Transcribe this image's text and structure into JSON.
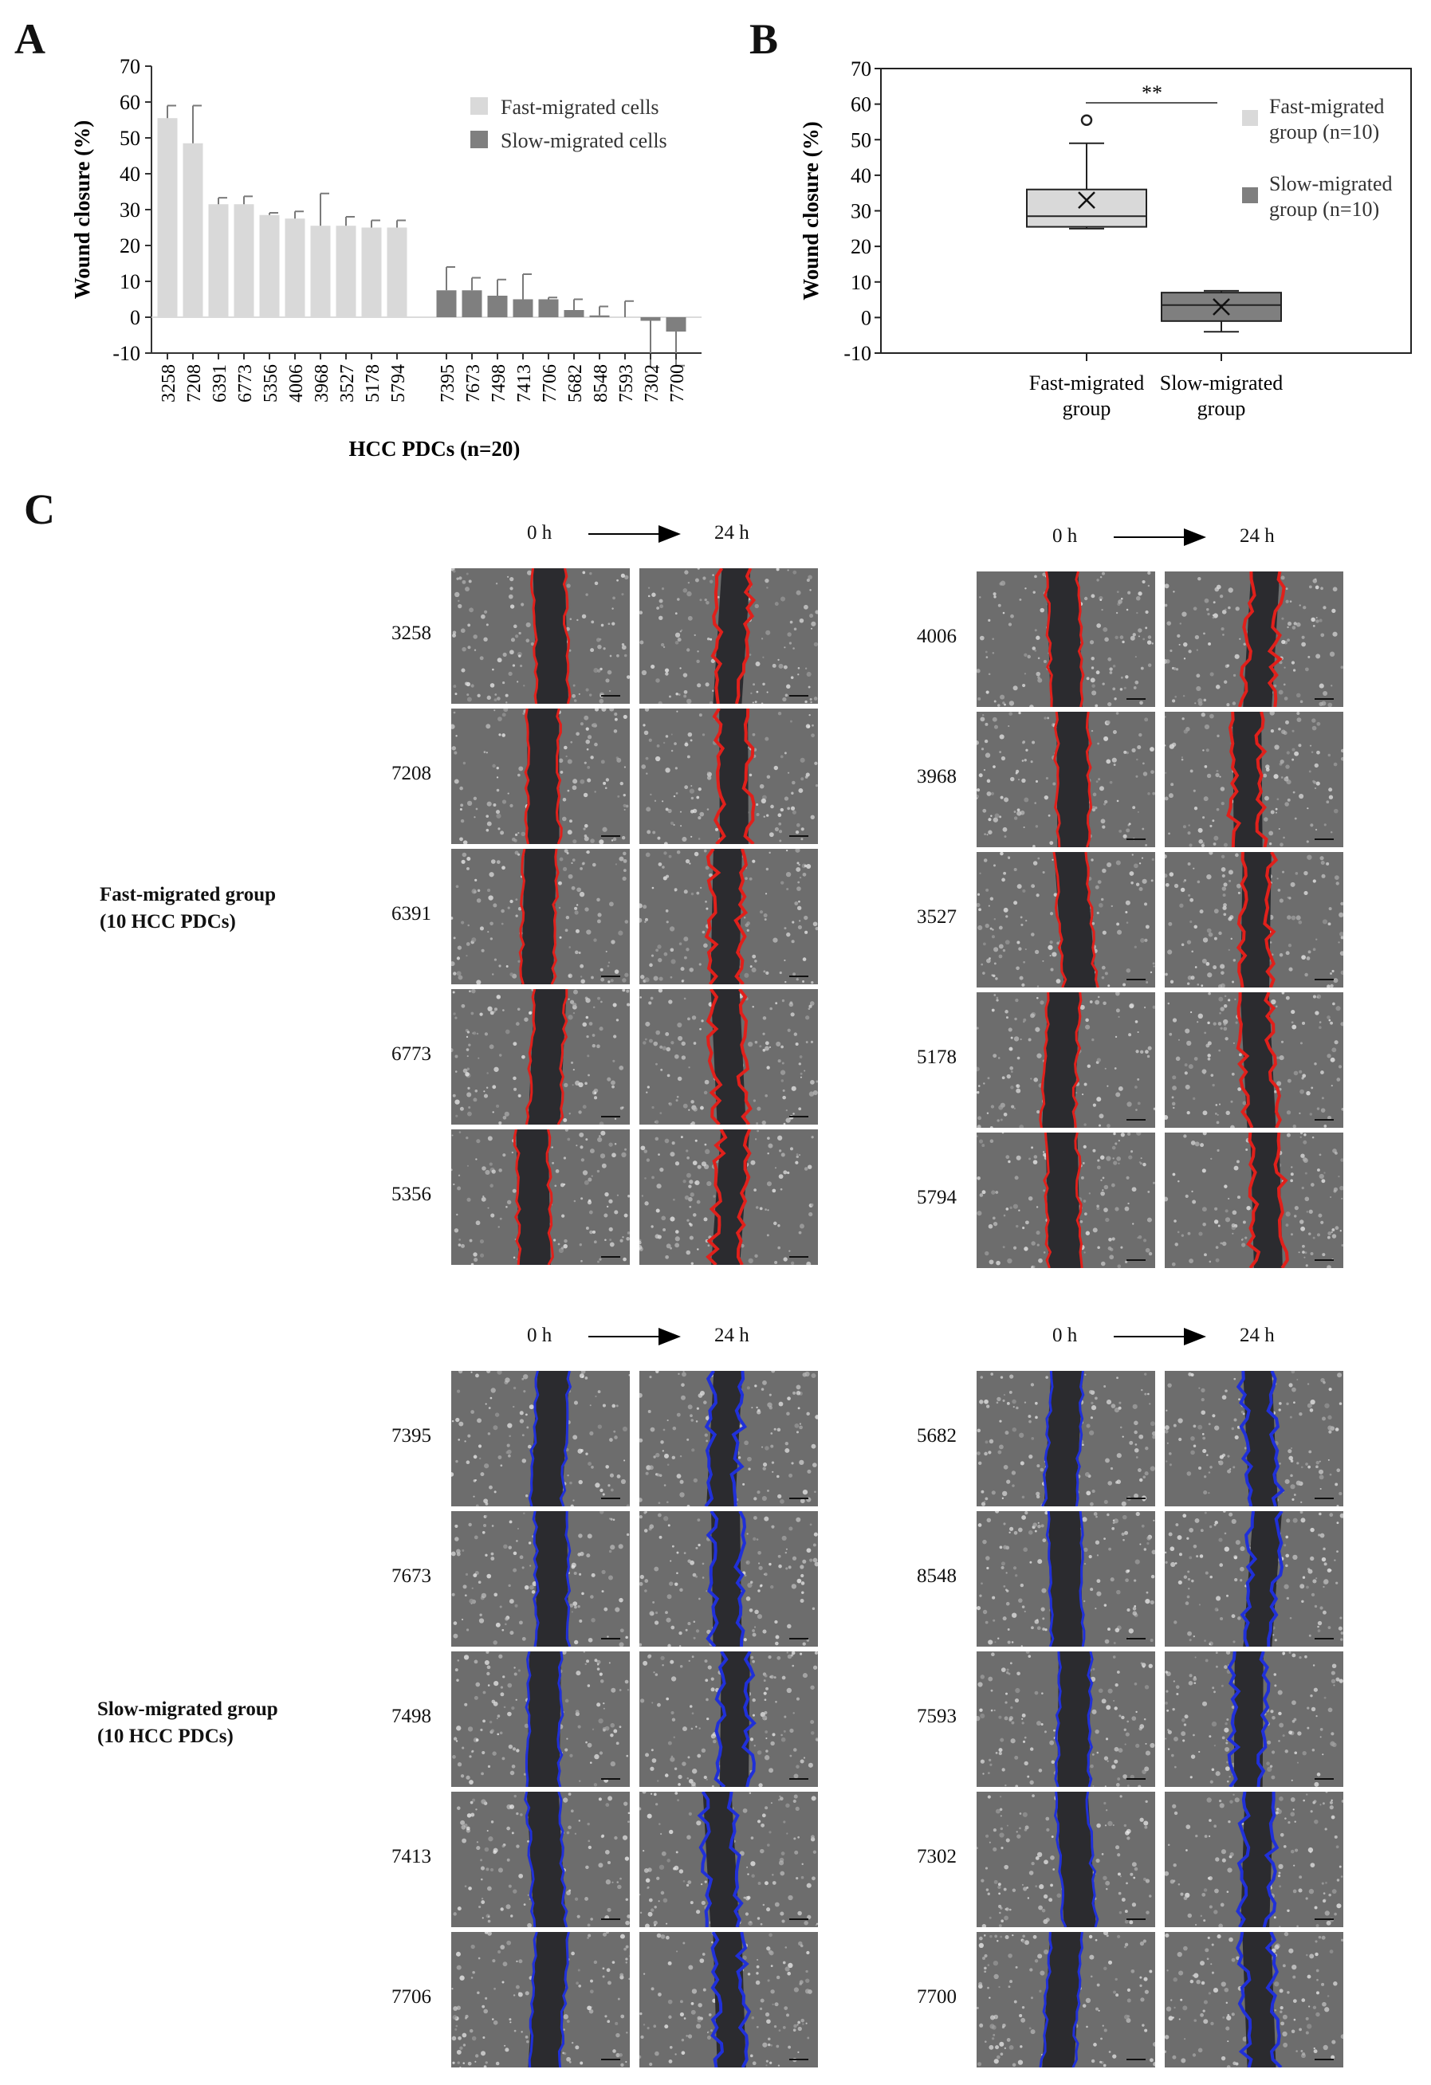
{
  "panels": {
    "a": "A",
    "b": "B",
    "c": "C"
  },
  "chart_data": [
    {
      "type": "bar",
      "panel": "A",
      "xlabel": "HCC PDCs  (n=20)",
      "ylabel": "Wound closure (%)",
      "ylim": [
        -10,
        70
      ],
      "yticks": [
        -10,
        0,
        10,
        20,
        30,
        40,
        50,
        60,
        70
      ],
      "legend_position": "top-right",
      "series": [
        {
          "name": "Fast-migrated cells",
          "color": "#d9d9d9",
          "categories": [
            "3258",
            "7208",
            "6391",
            "6773",
            "5356",
            "4006",
            "3968",
            "3527",
            "5178",
            "5794"
          ],
          "values": [
            55.5,
            48.5,
            31.5,
            31.5,
            28.5,
            27.5,
            25.5,
            25.5,
            25,
            25
          ],
          "errors": [
            3.5,
            10.5,
            1.8,
            2.2,
            0.6,
            2.0,
            9.0,
            2.5,
            2.0,
            2.0
          ]
        },
        {
          "name": "Slow-migrated cells",
          "color": "#7f7f7f",
          "categories": [
            "7395",
            "7673",
            "7498",
            "7413",
            "7706",
            "5682",
            "8548",
            "7593",
            "7302",
            "7700"
          ],
          "values": [
            7.5,
            7.5,
            6,
            5,
            5,
            2,
            0.5,
            0,
            -1,
            -4
          ],
          "errors": [
            6.5,
            3.5,
            4.5,
            7.0,
            0.5,
            3.0,
            2.5,
            4.5,
            13.0,
            9.5
          ]
        }
      ]
    },
    {
      "type": "box",
      "panel": "B",
      "ylabel": "Wound closure (%)",
      "ylim": [
        -10,
        70
      ],
      "yticks": [
        -10,
        0,
        10,
        20,
        30,
        40,
        50,
        60,
        70
      ],
      "significance": "**",
      "legend_position": "right",
      "groups": [
        {
          "label": [
            "Fast-migrated",
            "group"
          ],
          "legend": [
            "Fast-migrated",
            "group (n=10)"
          ],
          "color": "#d9d9d9",
          "whisker_low": 25,
          "q1": 25.5,
          "median": 28.5,
          "q3": 36,
          "whisker_high": 49,
          "mean": 33,
          "outliers": [
            55.5
          ]
        },
        {
          "label": [
            "Slow-migrated",
            "group"
          ],
          "legend": [
            "Slow-migrated",
            "group (n=10)"
          ],
          "color": "#7f7f7f",
          "whisker_low": -4,
          "q1": -1,
          "median": 3.5,
          "q3": 7,
          "whisker_high": 7.5,
          "mean": 3,
          "outliers": []
        }
      ]
    }
  ],
  "panel_c": {
    "time_start": "0 h",
    "time_end": "24 h",
    "fast_group": [
      "Fast-migrated group",
      "(10 HCC PDCs)"
    ],
    "slow_group": [
      "Slow-migrated group",
      "(10 HCC PDCs)"
    ],
    "fast_outline_color": "#e0201b",
    "slow_outline_color": "#2030d8",
    "fast_left": [
      "3258",
      "7208",
      "6391",
      "6773",
      "5356"
    ],
    "fast_right": [
      "4006",
      "3968",
      "3527",
      "5178",
      "5794"
    ],
    "slow_left": [
      "7395",
      "7673",
      "7498",
      "7413",
      "7706"
    ],
    "slow_right": [
      "5682",
      "8548",
      "7593",
      "7302",
      "7700"
    ]
  }
}
